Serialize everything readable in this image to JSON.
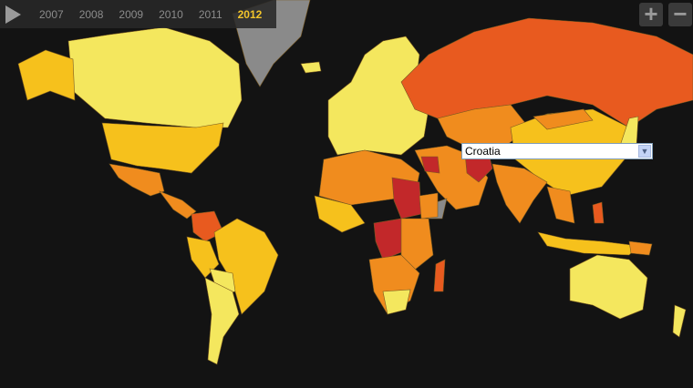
{
  "timeline": {
    "play_icon": "play-icon",
    "years": [
      "2007",
      "2008",
      "2009",
      "2010",
      "2011",
      "2012"
    ],
    "selected_year": "2012"
  },
  "zoom": {
    "in_label": "+",
    "out_label": "−"
  },
  "country_select": {
    "value": "Croatia"
  },
  "colors": {
    "light_yellow": "#f4e75e",
    "gold": "#f6c11c",
    "orange": "#f08c1e",
    "red_orange": "#e85a1f",
    "dark_red": "#c2282a",
    "no_data": "#8a8a8a",
    "background": "#131313"
  }
}
